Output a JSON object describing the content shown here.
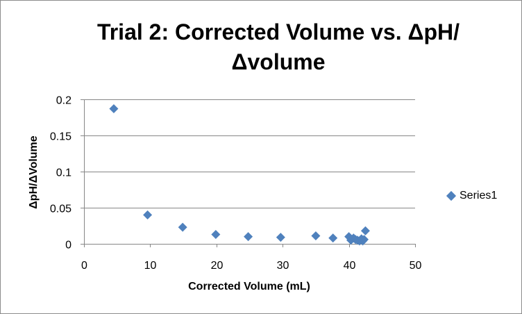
{
  "colors": {
    "marker": "#4f81bd",
    "gridline": "#868686",
    "axis": "#868686",
    "frame": "#8c8c8c"
  },
  "legend": {
    "series_name": "Series1",
    "placement": "right",
    "marker_icon": "diamond-icon"
  },
  "chart_data": {
    "type": "scatter",
    "title": "Trial 2: Corrected Volume vs. ΔpH/ Δvolume",
    "title_lines": [
      "Trial 2: Corrected Volume vs. ΔpH/",
      "Δvolume"
    ],
    "xlabel": "Corrected Volume (mL)",
    "ylabel": "ΔpH/ΔVolume",
    "xlim": [
      0,
      50
    ],
    "ylim": [
      0,
      0.2
    ],
    "x_ticks": [
      0,
      10,
      20,
      30,
      40,
      50
    ],
    "x_tick_labels": [
      "0",
      "10",
      "20",
      "30",
      "40",
      "50"
    ],
    "y_ticks": [
      0,
      0.05,
      0.1,
      0.15,
      0.2
    ],
    "y_tick_labels": [
      "0",
      "0.05",
      "0.1",
      "0.15",
      "0.2"
    ],
    "grid": "horizontal major gridlines",
    "legend_placement": "right",
    "series": [
      {
        "name": "Series1",
        "marker": "diamond",
        "points": [
          {
            "x": 4.5,
            "y": 0.187
          },
          {
            "x": 9.6,
            "y": 0.04
          },
          {
            "x": 14.9,
            "y": 0.023
          },
          {
            "x": 19.9,
            "y": 0.013
          },
          {
            "x": 24.8,
            "y": 0.01
          },
          {
            "x": 29.7,
            "y": 0.009
          },
          {
            "x": 35.0,
            "y": 0.011
          },
          {
            "x": 37.6,
            "y": 0.008
          },
          {
            "x": 40.0,
            "y": 0.01
          },
          {
            "x": 40.3,
            "y": 0.005
          },
          {
            "x": 40.7,
            "y": 0.008
          },
          {
            "x": 41.0,
            "y": 0.006
          },
          {
            "x": 41.3,
            "y": 0.005
          },
          {
            "x": 41.6,
            "y": 0.004
          },
          {
            "x": 41.9,
            "y": 0.007
          },
          {
            "x": 42.1,
            "y": 0.004
          },
          {
            "x": 42.3,
            "y": 0.006
          },
          {
            "x": 42.5,
            "y": 0.018
          }
        ]
      }
    ]
  }
}
